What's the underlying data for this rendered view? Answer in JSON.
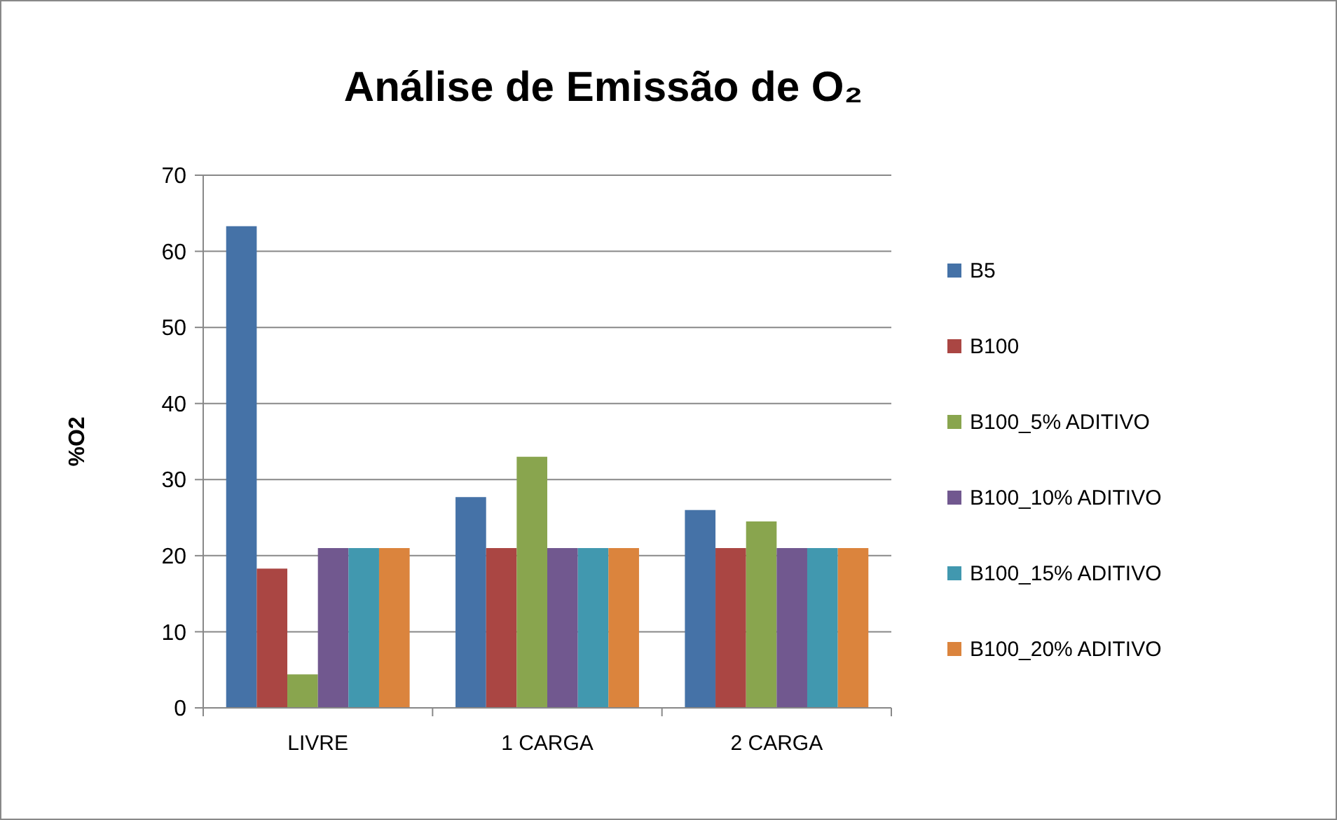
{
  "chart_data": {
    "type": "bar",
    "title": "Análise de Emissão de O₂",
    "ylabel": "%O2",
    "categories": [
      "LIVRE",
      "1 CARGA",
      "2 CARGA"
    ],
    "series": [
      {
        "name": "B5",
        "color": "#4572a7",
        "values": [
          63.3,
          27.7,
          26.0
        ]
      },
      {
        "name": "B100",
        "color": "#aa4643",
        "values": [
          18.3,
          21,
          21
        ]
      },
      {
        "name": "B100_5% ADITIVO",
        "color": "#89a54e",
        "values": [
          4.4,
          33.0,
          24.5
        ]
      },
      {
        "name": "B100_10% ADITIVO",
        "color": "#71588f",
        "values": [
          21,
          21,
          21
        ]
      },
      {
        "name": "B100_15% ADITIVO",
        "color": "#4198af",
        "values": [
          21,
          21,
          21
        ]
      },
      {
        "name": "B100_20% ADITIVO",
        "color": "#db843d",
        "values": [
          21,
          21,
          21
        ]
      }
    ],
    "ylim": [
      0,
      70
    ],
    "yticks": [
      0,
      10,
      20,
      30,
      40,
      50,
      60,
      70
    ],
    "grid": "y",
    "legend": "right"
  }
}
